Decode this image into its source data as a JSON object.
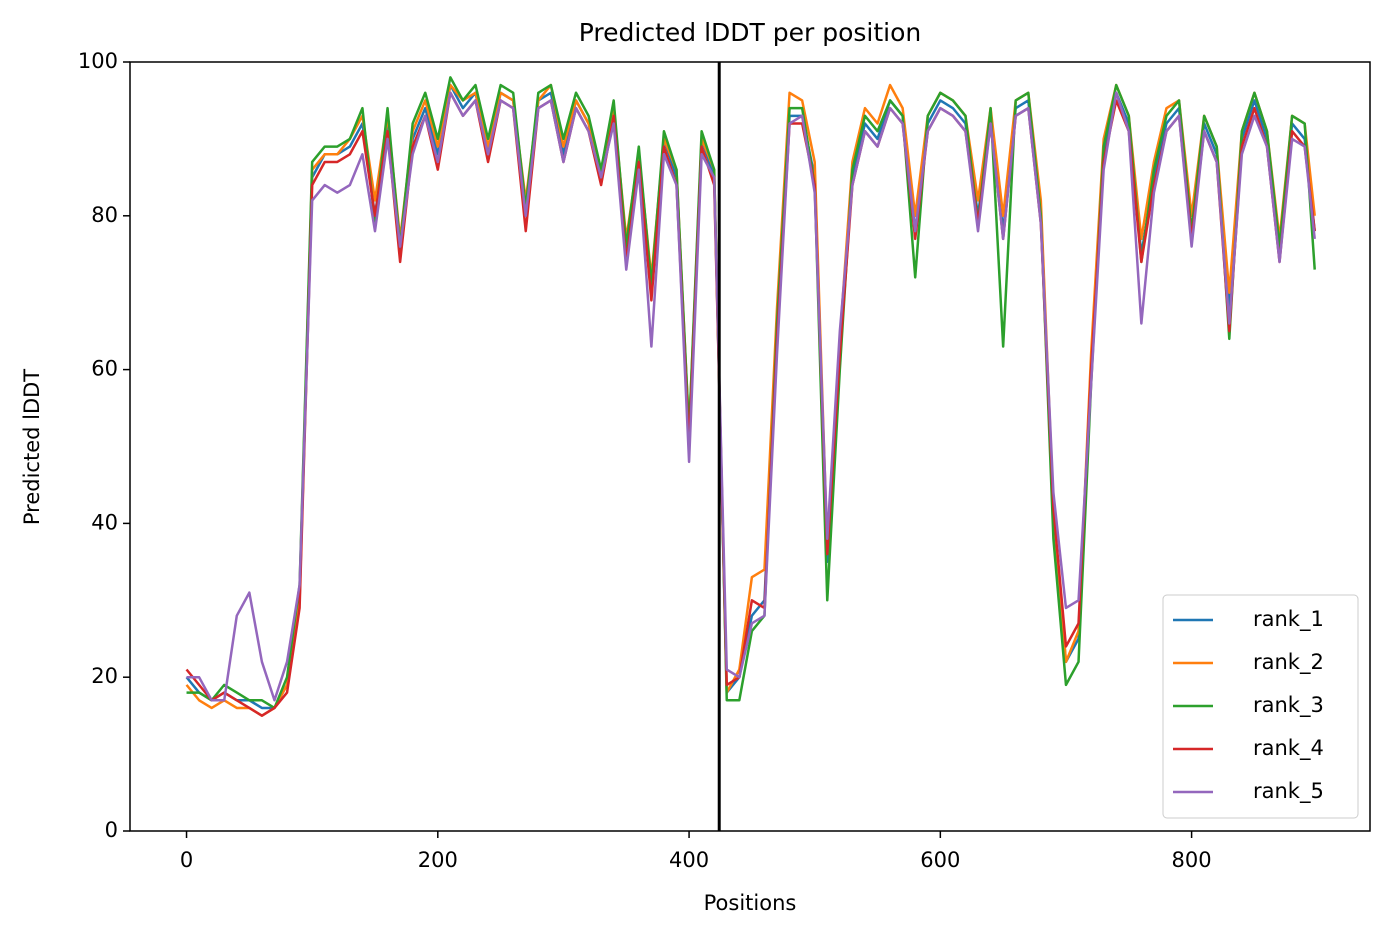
{
  "chart_data": {
    "type": "line",
    "title": "Predicted lDDT per position",
    "xlabel": "Positions",
    "ylabel": "Predicted lDDT",
    "x": [
      0,
      10,
      20,
      30,
      40,
      50,
      60,
      70,
      80,
      90,
      100,
      110,
      120,
      130,
      140,
      150,
      160,
      170,
      180,
      190,
      200,
      210,
      220,
      230,
      240,
      250,
      260,
      270,
      280,
      290,
      300,
      310,
      320,
      330,
      340,
      350,
      360,
      370,
      380,
      390,
      400,
      410,
      420,
      430,
      440,
      450,
      460,
      470,
      480,
      490,
      500,
      510,
      520,
      530,
      540,
      550,
      560,
      570,
      580,
      590,
      600,
      610,
      620,
      630,
      640,
      650,
      660,
      670,
      680,
      690,
      700,
      710,
      720,
      730,
      740,
      750,
      760,
      770,
      780,
      790,
      800,
      810,
      820,
      830,
      840,
      850,
      860,
      870,
      880,
      890,
      898
    ],
    "series": [
      {
        "name": "rank_1",
        "color": "#1f77b4",
        "values": [
          20,
          18,
          17,
          18,
          17,
          17,
          16,
          16,
          19,
          30,
          85,
          88,
          88,
          89,
          92,
          80,
          92,
          75,
          90,
          94,
          88,
          97,
          94,
          96,
          88,
          96,
          95,
          80,
          95,
          96,
          88,
          95,
          92,
          85,
          94,
          75,
          88,
          70,
          90,
          85,
          50,
          90,
          85,
          18,
          20,
          28,
          30,
          65,
          93,
          93,
          85,
          35,
          62,
          85,
          92,
          90,
          95,
          93,
          78,
          92,
          95,
          94,
          92,
          80,
          93,
          78,
          94,
          95,
          80,
          40,
          22,
          25,
          60,
          88,
          96,
          92,
          75,
          85,
          92,
          94,
          78,
          92,
          88,
          68,
          90,
          95,
          90,
          75,
          92,
          90,
          78
        ]
      },
      {
        "name": "rank_2",
        "color": "#ff7f0e",
        "values": [
          19,
          17,
          16,
          17,
          16,
          16,
          15,
          16,
          19,
          31,
          86,
          88,
          88,
          90,
          93,
          82,
          93,
          77,
          91,
          95,
          89,
          97,
          95,
          96,
          89,
          96,
          95,
          82,
          95,
          97,
          89,
          95,
          92,
          86,
          94,
          77,
          88,
          72,
          90,
          86,
          52,
          90,
          86,
          18,
          21,
          33,
          34,
          68,
          96,
          95,
          87,
          37,
          64,
          87,
          94,
          92,
          97,
          94,
          80,
          93,
          96,
          95,
          93,
          82,
          94,
          80,
          95,
          96,
          82,
          42,
          22,
          26,
          62,
          90,
          97,
          93,
          77,
          87,
          94,
          95,
          80,
          93,
          89,
          70,
          91,
          96,
          91,
          77,
          93,
          92,
          80
        ]
      },
      {
        "name": "rank_3",
        "color": "#2ca02c",
        "values": [
          18,
          18,
          17,
          19,
          18,
          17,
          17,
          16,
          20,
          32,
          87,
          89,
          89,
          90,
          94,
          79,
          94,
          76,
          92,
          96,
          90,
          98,
          95,
          97,
          90,
          97,
          96,
          81,
          96,
          97,
          90,
          96,
          93,
          86,
          95,
          76,
          89,
          71,
          91,
          86,
          52,
          91,
          86,
          17,
          17,
          26,
          28,
          66,
          94,
          94,
          84,
          30,
          60,
          86,
          93,
          91,
          95,
          93,
          72,
          93,
          96,
          95,
          93,
          79,
          94,
          63,
          95,
          96,
          80,
          38,
          19,
          22,
          58,
          89,
          97,
          93,
          74,
          86,
          93,
          95,
          78,
          93,
          89,
          64,
          91,
          96,
          91,
          76,
          93,
          92,
          73
        ]
      },
      {
        "name": "rank_4",
        "color": "#d62728",
        "values": [
          21,
          19,
          17,
          18,
          17,
          16,
          15,
          16,
          18,
          29,
          84,
          87,
          87,
          88,
          91,
          80,
          91,
          74,
          89,
          93,
          86,
          96,
          93,
          95,
          87,
          95,
          94,
          78,
          94,
          95,
          87,
          94,
          91,
          84,
          93,
          74,
          87,
          69,
          89,
          84,
          50,
          89,
          84,
          19,
          20,
          30,
          29,
          64,
          92,
          92,
          84,
          36,
          62,
          84,
          91,
          89,
          94,
          92,
          77,
          91,
          94,
          93,
          91,
          79,
          92,
          77,
          93,
          94,
          79,
          42,
          24,
          27,
          60,
          87,
          95,
          91,
          74,
          84,
          91,
          93,
          77,
          91,
          87,
          65,
          89,
          94,
          89,
          74,
          91,
          89,
          78
        ]
      },
      {
        "name": "rank_5",
        "color": "#9467bd",
        "values": [
          20,
          20,
          17,
          17,
          28,
          31,
          22,
          17,
          22,
          32,
          82,
          84,
          83,
          84,
          88,
          78,
          90,
          76,
          88,
          93,
          87,
          96,
          93,
          95,
          88,
          95,
          94,
          80,
          94,
          95,
          87,
          94,
          91,
          85,
          92,
          73,
          86,
          63,
          88,
          84,
          48,
          88,
          85,
          21,
          20,
          27,
          28,
          62,
          92,
          93,
          83,
          38,
          65,
          84,
          91,
          89,
          94,
          92,
          78,
          91,
          94,
          93,
          91,
          78,
          92,
          77,
          93,
          94,
          79,
          44,
          29,
          30,
          58,
          86,
          96,
          91,
          66,
          83,
          91,
          93,
          76,
          91,
          87,
          66,
          88,
          93,
          89,
          74,
          90,
          89,
          77
        ]
      }
    ],
    "vlines": [
      424
    ],
    "xlim": [
      -45,
      942
    ],
    "ylim": [
      0,
      100
    ],
    "xticks": [
      0,
      200,
      400,
      600,
      800
    ],
    "yticks": [
      0,
      20,
      40,
      60,
      80,
      100
    ],
    "legend": "lower right",
    "grid": false
  }
}
